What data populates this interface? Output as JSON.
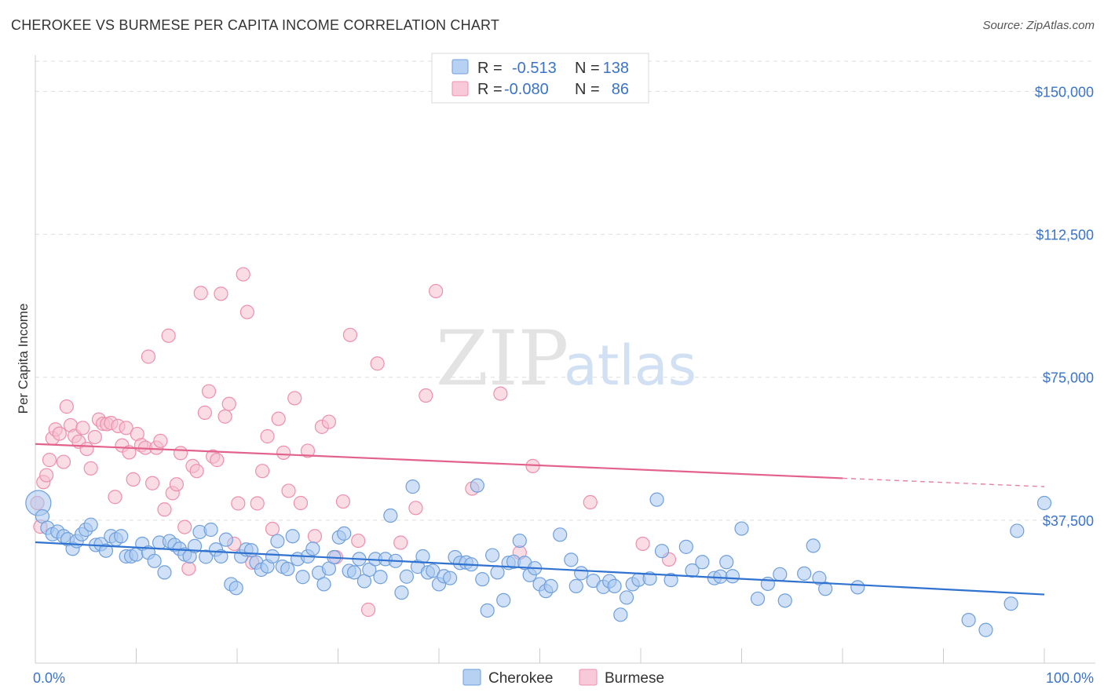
{
  "title": "CHEROKEE VS BURMESE PER CAPITA INCOME CORRELATION CHART",
  "source": "Source: ZipAtlas.com",
  "watermark": {
    "zip": "ZIP",
    "atlas": "atlas"
  },
  "colors": {
    "cherokee_fill": "#a9c8f0",
    "cherokee_stroke": "#6f9fdc",
    "cherokee_line": "#2f72d0",
    "burmese_fill": "#f6bfd0",
    "burmese_stroke": "#ee8fac",
    "burmese_line": "#e2628c",
    "grid": "#dddddd",
    "label": "#3a73c8"
  },
  "legend": {
    "r_label": "R =",
    "n_label": "N =",
    "rows": [
      {
        "series": "Cherokee",
        "r": "-0.513",
        "n": "138"
      },
      {
        "series": "Burmese",
        "r": "-0.080",
        "n": "86"
      }
    ]
  },
  "chart_data": {
    "type": "scatter",
    "title": "CHEROKEE VS BURMESE PER CAPITA INCOME CORRELATION CHART",
    "xlabel": "",
    "ylabel": "Per Capita Income",
    "xlim": [
      0,
      100
    ],
    "ylim": [
      0,
      157500
    ],
    "y_ticks": [
      37500,
      75000,
      112500,
      150000
    ],
    "y_tick_labels": [
      "$37,500",
      "$75,000",
      "$112,500",
      "$150,000"
    ],
    "x_tick_labels": [
      "0.0%",
      "100.0%"
    ],
    "grid": true,
    "legend_position": "top-center",
    "series": [
      {
        "name": "Cherokee",
        "trend": {
          "x": [
            0,
            100
          ],
          "y": [
            31700,
            18000
          ]
        },
        "points": [
          [
            0.3,
            42000
          ],
          [
            0.7,
            38500
          ],
          [
            1.2,
            35500
          ],
          [
            1.7,
            33800
          ],
          [
            2.2,
            34500
          ],
          [
            2.8,
            33300
          ],
          [
            3.2,
            32500
          ],
          [
            3.7,
            30000
          ],
          [
            4.1,
            32000
          ],
          [
            4.6,
            33800
          ],
          [
            5.0,
            35000
          ],
          [
            5.5,
            36300
          ],
          [
            6.0,
            31000
          ],
          [
            6.5,
            31200
          ],
          [
            7.0,
            29500
          ],
          [
            7.5,
            33300
          ],
          [
            8.0,
            32500
          ],
          [
            8.5,
            33300
          ],
          [
            9.0,
            28000
          ],
          [
            9.5,
            28000
          ],
          [
            10.0,
            28500
          ],
          [
            10.6,
            31300
          ],
          [
            11.2,
            29000
          ],
          [
            11.8,
            26800
          ],
          [
            12.3,
            31600
          ],
          [
            12.8,
            23800
          ],
          [
            13.3,
            32000
          ],
          [
            13.8,
            31000
          ],
          [
            14.3,
            30000
          ],
          [
            14.8,
            28500
          ],
          [
            15.3,
            28000
          ],
          [
            15.8,
            30700
          ],
          [
            16.3,
            34400
          ],
          [
            16.9,
            27900
          ],
          [
            17.4,
            35000
          ],
          [
            17.9,
            29800
          ],
          [
            18.4,
            28000
          ],
          [
            18.9,
            32400
          ],
          [
            19.4,
            20700
          ],
          [
            19.9,
            19700
          ],
          [
            20.4,
            28000
          ],
          [
            20.9,
            29800
          ],
          [
            21.4,
            29600
          ],
          [
            21.9,
            26400
          ],
          [
            22.4,
            24500
          ],
          [
            23.0,
            25400
          ],
          [
            23.5,
            28000
          ],
          [
            24.0,
            32000
          ],
          [
            24.5,
            25300
          ],
          [
            25.0,
            24700
          ],
          [
            25.5,
            33300
          ],
          [
            26.0,
            27300
          ],
          [
            26.5,
            22600
          ],
          [
            27.0,
            28000
          ],
          [
            27.5,
            30000
          ],
          [
            28.1,
            23700
          ],
          [
            28.6,
            20700
          ],
          [
            29.1,
            24800
          ],
          [
            29.6,
            27800
          ],
          [
            30.1,
            33000
          ],
          [
            30.6,
            34000
          ],
          [
            31.1,
            24200
          ],
          [
            31.6,
            23800
          ],
          [
            32.1,
            27300
          ],
          [
            32.6,
            21500
          ],
          [
            33.1,
            24500
          ],
          [
            33.7,
            27300
          ],
          [
            34.2,
            22600
          ],
          [
            34.7,
            27300
          ],
          [
            35.2,
            38700
          ],
          [
            35.7,
            26800
          ],
          [
            36.3,
            18500
          ],
          [
            36.8,
            22700
          ],
          [
            37.4,
            46300
          ],
          [
            37.9,
            25300
          ],
          [
            38.4,
            28000
          ],
          [
            38.9,
            23800
          ],
          [
            39.4,
            24200
          ],
          [
            40.0,
            20700
          ],
          [
            40.5,
            22800
          ],
          [
            41.1,
            22300
          ],
          [
            41.6,
            27800
          ],
          [
            42.1,
            26300
          ],
          [
            42.7,
            26400
          ],
          [
            43.2,
            25900
          ],
          [
            43.8,
            46600
          ],
          [
            44.3,
            22000
          ],
          [
            44.8,
            13800
          ],
          [
            45.3,
            28300
          ],
          [
            45.8,
            23800
          ],
          [
            46.4,
            16500
          ],
          [
            46.9,
            26300
          ],
          [
            47.4,
            26600
          ],
          [
            48.0,
            32100
          ],
          [
            48.5,
            26300
          ],
          [
            49.0,
            23100
          ],
          [
            49.5,
            24900
          ],
          [
            50.0,
            20700
          ],
          [
            50.6,
            18900
          ],
          [
            51.1,
            20200
          ],
          [
            52.0,
            33700
          ],
          [
            53.1,
            27100
          ],
          [
            53.6,
            20200
          ],
          [
            54.1,
            23600
          ],
          [
            55.3,
            21600
          ],
          [
            56.3,
            20000
          ],
          [
            56.9,
            21500
          ],
          [
            57.4,
            20200
          ],
          [
            58.0,
            12700
          ],
          [
            58.6,
            17200
          ],
          [
            59.2,
            20700
          ],
          [
            59.8,
            21900
          ],
          [
            60.9,
            22200
          ],
          [
            61.6,
            42900
          ],
          [
            62.1,
            29400
          ],
          [
            63.0,
            21800
          ],
          [
            64.5,
            30500
          ],
          [
            65.1,
            24300
          ],
          [
            66.1,
            26500
          ],
          [
            67.3,
            22300
          ],
          [
            67.9,
            22700
          ],
          [
            68.5,
            26500
          ],
          [
            69.1,
            22800
          ],
          [
            70.0,
            35300
          ],
          [
            71.6,
            16900
          ],
          [
            72.6,
            20800
          ],
          [
            73.8,
            23300
          ],
          [
            74.3,
            16400
          ],
          [
            76.2,
            23500
          ],
          [
            77.1,
            30800
          ],
          [
            77.7,
            22300
          ],
          [
            78.3,
            19500
          ],
          [
            81.5,
            19900
          ],
          [
            92.5,
            11300
          ],
          [
            94.2,
            8700
          ],
          [
            96.7,
            15600
          ],
          [
            97.3,
            34700
          ],
          [
            100.0,
            42000
          ]
        ]
      },
      {
        "name": "Burmese",
        "trend": {
          "x": [
            0,
            80
          ],
          "y": [
            57500,
            48500
          ],
          "dashed_to": {
            "x": 100,
            "y": 46300
          }
        },
        "points": [
          [
            0.2,
            42000
          ],
          [
            0.5,
            35800
          ],
          [
            0.8,
            47500
          ],
          [
            1.1,
            49300
          ],
          [
            1.4,
            53300
          ],
          [
            1.7,
            59000
          ],
          [
            2.0,
            61300
          ],
          [
            2.4,
            60200
          ],
          [
            2.8,
            52800
          ],
          [
            3.1,
            67300
          ],
          [
            3.5,
            62400
          ],
          [
            3.9,
            59600
          ],
          [
            4.3,
            58100
          ],
          [
            4.7,
            61700
          ],
          [
            5.1,
            56200
          ],
          [
            5.5,
            51100
          ],
          [
            5.9,
            59300
          ],
          [
            6.3,
            63900
          ],
          [
            6.7,
            62800
          ],
          [
            7.1,
            62700
          ],
          [
            7.5,
            63000
          ],
          [
            7.9,
            43600
          ],
          [
            8.2,
            62200
          ],
          [
            8.6,
            57100
          ],
          [
            9.0,
            61700
          ],
          [
            9.3,
            55300
          ],
          [
            9.7,
            48200
          ],
          [
            10.1,
            60100
          ],
          [
            10.5,
            57200
          ],
          [
            10.9,
            56500
          ],
          [
            11.2,
            80400
          ],
          [
            11.6,
            47200
          ],
          [
            12.0,
            56500
          ],
          [
            12.4,
            58300
          ],
          [
            12.8,
            40300
          ],
          [
            13.2,
            85900
          ],
          [
            13.6,
            44600
          ],
          [
            14.0,
            46900
          ],
          [
            14.4,
            55100
          ],
          [
            14.8,
            35700
          ],
          [
            15.2,
            24800
          ],
          [
            15.6,
            51700
          ],
          [
            16.0,
            50400
          ],
          [
            16.4,
            97100
          ],
          [
            16.8,
            65700
          ],
          [
            17.2,
            71300
          ],
          [
            17.6,
            54200
          ],
          [
            18.0,
            53300
          ],
          [
            18.4,
            96900
          ],
          [
            18.8,
            64700
          ],
          [
            19.2,
            68000
          ],
          [
            19.7,
            31300
          ],
          [
            20.1,
            41900
          ],
          [
            20.6,
            102000
          ],
          [
            21.0,
            92100
          ],
          [
            21.5,
            26400
          ],
          [
            22.0,
            41900
          ],
          [
            22.5,
            50400
          ],
          [
            23.0,
            59500
          ],
          [
            23.5,
            35200
          ],
          [
            24.1,
            64100
          ],
          [
            24.6,
            55200
          ],
          [
            25.1,
            45200
          ],
          [
            25.7,
            69500
          ],
          [
            26.3,
            42000
          ],
          [
            27.0,
            55700
          ],
          [
            27.7,
            33300
          ],
          [
            28.4,
            62000
          ],
          [
            29.1,
            63300
          ],
          [
            29.8,
            27800
          ],
          [
            30.5,
            42400
          ],
          [
            31.2,
            86100
          ],
          [
            32.0,
            32100
          ],
          [
            33.0,
            14000
          ],
          [
            33.9,
            78600
          ],
          [
            36.2,
            31600
          ],
          [
            37.7,
            40700
          ],
          [
            38.7,
            70200
          ],
          [
            39.7,
            97600
          ],
          [
            43.3,
            45800
          ],
          [
            46.1,
            70700
          ],
          [
            48.0,
            29000
          ],
          [
            49.3,
            51700
          ],
          [
            55.0,
            42200
          ],
          [
            60.2,
            31300
          ],
          [
            62.8,
            27200
          ]
        ]
      }
    ]
  },
  "bottom_legend": [
    {
      "label": "Cherokee"
    },
    {
      "label": "Burmese"
    }
  ]
}
